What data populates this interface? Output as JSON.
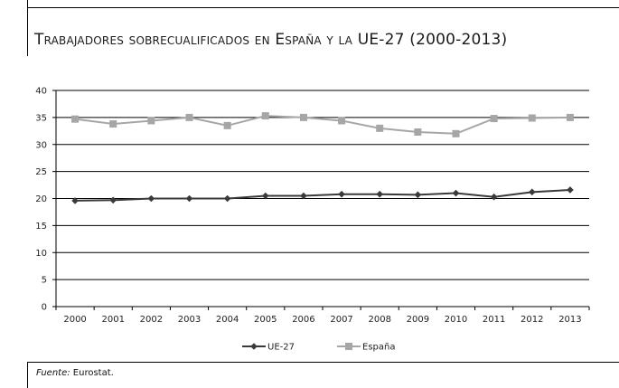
{
  "chart_data": {
    "type": "line",
    "title": "Trabajadores sobrecualificados en España y la UE-27 (2000-2013)",
    "categories": [
      "2000",
      "2001",
      "2002",
      "2003",
      "2004",
      "2005",
      "2006",
      "2007",
      "2008",
      "2009",
      "2010",
      "2011",
      "2012",
      "2013"
    ],
    "series": [
      {
        "name": "UE-27",
        "color": "#3a3a3a",
        "marker": "diamond",
        "values": [
          19.6,
          19.7,
          20.0,
          20.0,
          20.0,
          20.5,
          20.5,
          20.8,
          20.8,
          20.7,
          21.0,
          20.3,
          21.2,
          21.6
        ]
      },
      {
        "name": "España",
        "color": "#a6a6a6",
        "marker": "square",
        "values": [
          34.7,
          33.8,
          34.4,
          35.0,
          33.5,
          35.3,
          35.0,
          34.4,
          33.0,
          32.3,
          32.0,
          34.8,
          34.9,
          35.0
        ]
      }
    ],
    "yticks": [
      0,
      5,
      10,
      15,
      20,
      25,
      30,
      35,
      40
    ],
    "ylim": [
      0,
      40
    ],
    "grid": true,
    "legend_position": "bottom-center"
  },
  "source": {
    "label": "Fuente:",
    "text": " Eurostat."
  }
}
